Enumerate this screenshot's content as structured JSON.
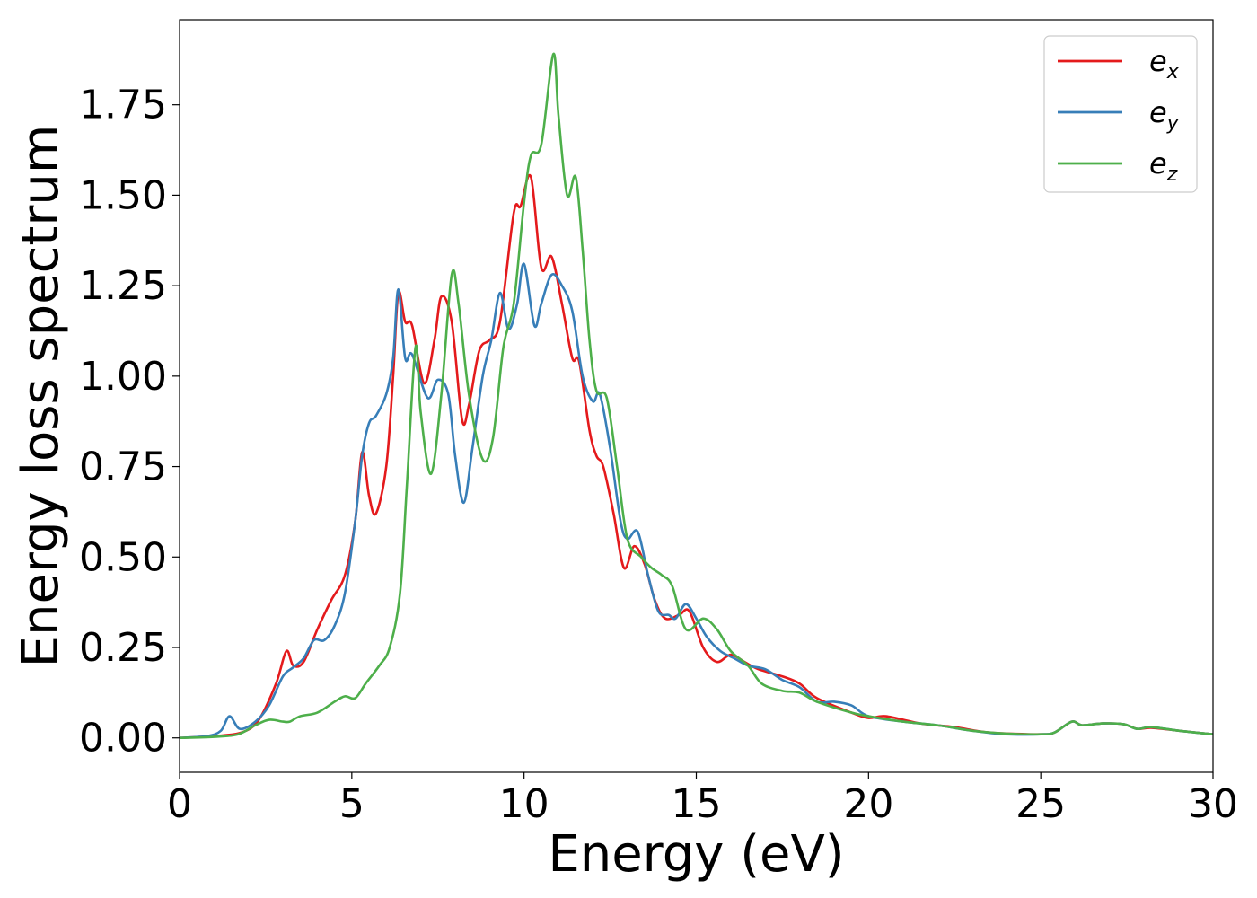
{
  "chart_data": {
    "type": "line",
    "xlabel": "Energy (eV)",
    "ylabel": "Energy loss spectrum",
    "xlim": [
      0,
      30
    ],
    "ylim": [
      -0.095,
      1.985
    ],
    "xticks": [
      0,
      5,
      10,
      15,
      20,
      25,
      30
    ],
    "xtick_labels": [
      "0",
      "5",
      "10",
      "15",
      "20",
      "25",
      "30"
    ],
    "yticks": [
      0.0,
      0.25,
      0.5,
      0.75,
      1.0,
      1.25,
      1.5,
      1.75
    ],
    "ytick_labels": [
      "0.00",
      "0.25",
      "0.50",
      "0.75",
      "1.00",
      "1.25",
      "1.50",
      "1.75"
    ],
    "grid": false,
    "legend_position": "top-right",
    "series": [
      {
        "name": "e_x",
        "label_main": "e",
        "label_sub": "x",
        "color": "#e41a1c",
        "points": [
          [
            0,
            0
          ],
          [
            1.0,
            0.005
          ],
          [
            1.8,
            0.015
          ],
          [
            2.3,
            0.05
          ],
          [
            2.8,
            0.15
          ],
          [
            3.1,
            0.24
          ],
          [
            3.3,
            0.2
          ],
          [
            3.6,
            0.21
          ],
          [
            4.0,
            0.3
          ],
          [
            4.4,
            0.38
          ],
          [
            4.8,
            0.45
          ],
          [
            5.1,
            0.6
          ],
          [
            5.3,
            0.79
          ],
          [
            5.5,
            0.67
          ],
          [
            5.7,
            0.62
          ],
          [
            6.0,
            0.75
          ],
          [
            6.2,
            1.0
          ],
          [
            6.35,
            1.23
          ],
          [
            6.55,
            1.15
          ],
          [
            6.75,
            1.14
          ],
          [
            7.1,
            0.98
          ],
          [
            7.4,
            1.1
          ],
          [
            7.6,
            1.22
          ],
          [
            7.9,
            1.15
          ],
          [
            8.2,
            0.88
          ],
          [
            8.4,
            0.92
          ],
          [
            8.7,
            1.07
          ],
          [
            9.0,
            1.1
          ],
          [
            9.3,
            1.15
          ],
          [
            9.7,
            1.45
          ],
          [
            9.9,
            1.47
          ],
          [
            10.2,
            1.55
          ],
          [
            10.5,
            1.3
          ],
          [
            10.8,
            1.33
          ],
          [
            11.1,
            1.2
          ],
          [
            11.4,
            1.05
          ],
          [
            11.6,
            1.04
          ],
          [
            11.9,
            0.85
          ],
          [
            12.1,
            0.78
          ],
          [
            12.3,
            0.75
          ],
          [
            12.6,
            0.62
          ],
          [
            12.9,
            0.47
          ],
          [
            13.2,
            0.53
          ],
          [
            13.5,
            0.48
          ],
          [
            13.8,
            0.38
          ],
          [
            14.1,
            0.33
          ],
          [
            14.5,
            0.34
          ],
          [
            14.8,
            0.35
          ],
          [
            15.2,
            0.25
          ],
          [
            15.6,
            0.21
          ],
          [
            16.0,
            0.23
          ],
          [
            16.4,
            0.21
          ],
          [
            16.8,
            0.19
          ],
          [
            17.5,
            0.17
          ],
          [
            18.0,
            0.15
          ],
          [
            18.5,
            0.11
          ],
          [
            19.5,
            0.07
          ],
          [
            20.0,
            0.055
          ],
          [
            20.5,
            0.06
          ],
          [
            21.5,
            0.04
          ],
          [
            22.5,
            0.03
          ],
          [
            23.5,
            0.015
          ],
          [
            25.0,
            0.01
          ],
          [
            25.4,
            0.015
          ],
          [
            25.9,
            0.045
          ],
          [
            26.2,
            0.035
          ],
          [
            26.8,
            0.04
          ],
          [
            27.4,
            0.038
          ],
          [
            27.8,
            0.025
          ],
          [
            28.2,
            0.028
          ],
          [
            29.0,
            0.02
          ],
          [
            30.0,
            0.01
          ]
        ]
      },
      {
        "name": "e_y",
        "label_main": "e",
        "label_sub": "y",
        "color": "#377eb8",
        "points": [
          [
            0,
            0
          ],
          [
            0.8,
            0.005
          ],
          [
            1.2,
            0.02
          ],
          [
            1.45,
            0.06
          ],
          [
            1.75,
            0.025
          ],
          [
            2.2,
            0.045
          ],
          [
            2.6,
            0.09
          ],
          [
            3.0,
            0.17
          ],
          [
            3.3,
            0.195
          ],
          [
            3.6,
            0.22
          ],
          [
            3.9,
            0.27
          ],
          [
            4.2,
            0.27
          ],
          [
            4.5,
            0.31
          ],
          [
            4.8,
            0.4
          ],
          [
            5.1,
            0.6
          ],
          [
            5.3,
            0.78
          ],
          [
            5.5,
            0.87
          ],
          [
            5.7,
            0.89
          ],
          [
            6.0,
            0.95
          ],
          [
            6.2,
            1.05
          ],
          [
            6.35,
            1.24
          ],
          [
            6.55,
            1.05
          ],
          [
            6.75,
            1.06
          ],
          [
            7.2,
            0.94
          ],
          [
            7.5,
            0.99
          ],
          [
            7.8,
            0.95
          ],
          [
            8.0,
            0.78
          ],
          [
            8.25,
            0.65
          ],
          [
            8.5,
            0.8
          ],
          [
            8.8,
            1.0
          ],
          [
            9.05,
            1.1
          ],
          [
            9.3,
            1.23
          ],
          [
            9.55,
            1.13
          ],
          [
            9.8,
            1.2
          ],
          [
            10.0,
            1.31
          ],
          [
            10.3,
            1.14
          ],
          [
            10.5,
            1.2
          ],
          [
            10.8,
            1.28
          ],
          [
            11.1,
            1.25
          ],
          [
            11.4,
            1.18
          ],
          [
            11.7,
            1.0
          ],
          [
            12.0,
            0.93
          ],
          [
            12.2,
            0.95
          ],
          [
            12.5,
            0.8
          ],
          [
            12.8,
            0.6
          ],
          [
            13.0,
            0.55
          ],
          [
            13.3,
            0.57
          ],
          [
            13.6,
            0.45
          ],
          [
            13.9,
            0.35
          ],
          [
            14.2,
            0.34
          ],
          [
            14.4,
            0.33
          ],
          [
            14.7,
            0.37
          ],
          [
            15.0,
            0.33
          ],
          [
            15.3,
            0.28
          ],
          [
            15.7,
            0.24
          ],
          [
            16.1,
            0.22
          ],
          [
            16.5,
            0.2
          ],
          [
            17.0,
            0.19
          ],
          [
            17.5,
            0.16
          ],
          [
            18.0,
            0.14
          ],
          [
            18.5,
            0.1
          ],
          [
            19.0,
            0.1
          ],
          [
            19.5,
            0.09
          ],
          [
            20.0,
            0.06
          ],
          [
            21.0,
            0.045
          ],
          [
            22.0,
            0.035
          ],
          [
            23.0,
            0.02
          ],
          [
            24.0,
            0.01
          ],
          [
            25.0,
            0.01
          ],
          [
            25.4,
            0.015
          ],
          [
            25.9,
            0.045
          ],
          [
            26.2,
            0.035
          ],
          [
            26.8,
            0.04
          ],
          [
            27.4,
            0.038
          ],
          [
            27.8,
            0.025
          ],
          [
            28.2,
            0.03
          ],
          [
            29.0,
            0.02
          ],
          [
            30.0,
            0.01
          ]
        ]
      },
      {
        "name": "e_z",
        "label_main": "e",
        "label_sub": "z",
        "color": "#4daf4a",
        "points": [
          [
            0,
            0
          ],
          [
            1.0,
            0.003
          ],
          [
            1.7,
            0.01
          ],
          [
            2.2,
            0.035
          ],
          [
            2.6,
            0.05
          ],
          [
            3.0,
            0.045
          ],
          [
            3.2,
            0.045
          ],
          [
            3.5,
            0.06
          ],
          [
            4.0,
            0.07
          ],
          [
            4.5,
            0.1
          ],
          [
            4.8,
            0.115
          ],
          [
            5.1,
            0.11
          ],
          [
            5.4,
            0.15
          ],
          [
            5.8,
            0.2
          ],
          [
            6.1,
            0.25
          ],
          [
            6.4,
            0.4
          ],
          [
            6.6,
            0.7
          ],
          [
            6.85,
            1.08
          ],
          [
            7.0,
            0.9
          ],
          [
            7.3,
            0.73
          ],
          [
            7.6,
            0.95
          ],
          [
            7.9,
            1.28
          ],
          [
            8.1,
            1.2
          ],
          [
            8.4,
            0.95
          ],
          [
            8.8,
            0.77
          ],
          [
            9.1,
            0.83
          ],
          [
            9.4,
            1.08
          ],
          [
            9.7,
            1.2
          ],
          [
            10.0,
            1.48
          ],
          [
            10.2,
            1.61
          ],
          [
            10.5,
            1.64
          ],
          [
            10.85,
            1.89
          ],
          [
            11.0,
            1.72
          ],
          [
            11.25,
            1.5
          ],
          [
            11.5,
            1.55
          ],
          [
            11.7,
            1.35
          ],
          [
            11.9,
            1.1
          ],
          [
            12.1,
            0.96
          ],
          [
            12.4,
            0.94
          ],
          [
            12.7,
            0.75
          ],
          [
            13.0,
            0.55
          ],
          [
            13.4,
            0.5
          ],
          [
            13.7,
            0.47
          ],
          [
            14.0,
            0.45
          ],
          [
            14.3,
            0.42
          ],
          [
            14.7,
            0.3
          ],
          [
            15.2,
            0.33
          ],
          [
            15.6,
            0.3
          ],
          [
            16.0,
            0.24
          ],
          [
            16.5,
            0.2
          ],
          [
            16.9,
            0.15
          ],
          [
            17.5,
            0.13
          ],
          [
            18.0,
            0.125
          ],
          [
            18.5,
            0.1
          ],
          [
            19.5,
            0.07
          ],
          [
            20.0,
            0.06
          ],
          [
            21.0,
            0.045
          ],
          [
            22.0,
            0.035
          ],
          [
            23.0,
            0.02
          ],
          [
            24.0,
            0.012
          ],
          [
            25.0,
            0.01
          ],
          [
            25.4,
            0.015
          ],
          [
            25.9,
            0.045
          ],
          [
            26.2,
            0.035
          ],
          [
            26.8,
            0.04
          ],
          [
            27.4,
            0.038
          ],
          [
            27.8,
            0.025
          ],
          [
            28.2,
            0.03
          ],
          [
            29.0,
            0.02
          ],
          [
            30.0,
            0.01
          ]
        ]
      }
    ]
  }
}
